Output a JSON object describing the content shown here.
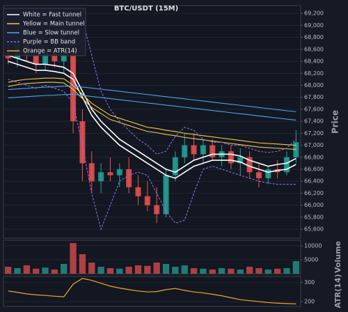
{
  "chart_data": {
    "type": "candlestick",
    "title": "BTC/USDT (15M)",
    "ylabel": "Price",
    "up_color": "#26a69a",
    "down_color": "#ef5350",
    "grid": true,
    "ylim": [
      65450,
      69330
    ],
    "yticks": [
      {
        "value": 65600,
        "label": "65,600"
      },
      {
        "value": 65800,
        "label": "65,800"
      },
      {
        "value": 66000,
        "label": "66,000"
      },
      {
        "value": 66200,
        "label": "66,200"
      },
      {
        "value": 66400,
        "label": "66,400"
      },
      {
        "value": 66600,
        "label": "66,600"
      },
      {
        "value": 66800,
        "label": "66,800"
      },
      {
        "value": 67000,
        "label": "67,000"
      },
      {
        "value": 67200,
        "label": "67,200"
      },
      {
        "value": 67400,
        "label": "67,400"
      },
      {
        "value": 67600,
        "label": "67,600"
      },
      {
        "value": 67800,
        "label": "67,800"
      },
      {
        "value": 68000,
        "label": "68,000"
      },
      {
        "value": 68200,
        "label": "68,200"
      },
      {
        "value": 68400,
        "label": "68,400"
      },
      {
        "value": 68600,
        "label": "68,600"
      },
      {
        "value": 68800,
        "label": "68,800"
      },
      {
        "value": 69000,
        "label": "69,000"
      },
      {
        "value": 69200,
        "label": "69,200"
      }
    ],
    "open": [
      68500,
      68450,
      68700,
      68500,
      68350,
      68550,
      68400,
      68600,
      67400,
      66700,
      66400,
      66550,
      66500,
      66600,
      66300,
      66150,
      66000,
      65850,
      66500,
      66800,
      67000,
      66850,
      67000,
      66800,
      66900,
      66700,
      66800,
      66550,
      66450,
      66600,
      66550,
      66800
    ],
    "high": [
      68700,
      68900,
      68800,
      68700,
      68600,
      68700,
      68900,
      68900,
      67600,
      66900,
      66700,
      66800,
      66700,
      66800,
      66500,
      66400,
      66300,
      66600,
      66900,
      67200,
      67200,
      67100,
      67100,
      67000,
      67000,
      66950,
      66900,
      66700,
      66650,
      66750,
      66900,
      67250
    ],
    "low": [
      68350,
      68300,
      68400,
      68200,
      68250,
      68300,
      68200,
      67200,
      66400,
      66200,
      66200,
      66400,
      66300,
      66200,
      66000,
      65900,
      65700,
      65800,
      66400,
      66700,
      66750,
      66700,
      66750,
      66650,
      66600,
      66500,
      66450,
      66300,
      66350,
      66450,
      66500,
      66700
    ],
    "close": [
      68450,
      68700,
      68500,
      68350,
      68550,
      68400,
      68600,
      67400,
      66700,
      66400,
      66550,
      66500,
      66600,
      66300,
      66150,
      66000,
      65850,
      66500,
      66800,
      67000,
      66850,
      67000,
      66800,
      66900,
      66700,
      66800,
      66550,
      66450,
      66600,
      66550,
      66800,
      67050
    ],
    "series": [
      {
        "name": "White = Fast tunnel",
        "color": "#ffffff",
        "dashed": false,
        "upper": [
          68500,
          68450,
          68400,
          68350,
          68350,
          68330,
          68300,
          68200,
          67900,
          67600,
          67400,
          67250,
          67100,
          67000,
          66900,
          66800,
          66700,
          66600,
          66550,
          66650,
          66750,
          66800,
          66850,
          66850,
          66850,
          66820,
          66750,
          66700,
          66650,
          66680,
          66700,
          66780
        ],
        "lower": [
          68400,
          68350,
          68300,
          68250,
          68250,
          68230,
          68200,
          68100,
          67800,
          67500,
          67300,
          67150,
          67000,
          66900,
          66800,
          66700,
          66600,
          66500,
          66450,
          66550,
          66650,
          66700,
          66750,
          66750,
          66750,
          66720,
          66650,
          66600,
          66550,
          66580,
          66600,
          66680
        ]
      },
      {
        "name": "Yellow = Main tunnel",
        "color": "#f5c842",
        "dashed": false,
        "upper": [
          68050,
          68080,
          68100,
          68110,
          68120,
          68120,
          68110,
          68000,
          67850,
          67700,
          67600,
          67500,
          67450,
          67400,
          67350,
          67300,
          67280,
          67250,
          67230,
          67200,
          67180,
          67160,
          67140,
          67120,
          67100,
          67080,
          67060,
          67040,
          67030,
          67020,
          67010,
          67000
        ],
        "lower": [
          67980,
          68010,
          68030,
          68040,
          68050,
          68050,
          68040,
          67930,
          67780,
          67630,
          67530,
          67430,
          67380,
          67330,
          67280,
          67230,
          67210,
          67180,
          67160,
          67130,
          67110,
          67090,
          67070,
          67050,
          67030,
          67010,
          66990,
          66970,
          66960,
          66950,
          66940,
          66930
        ]
      },
      {
        "name": "Blue = Slow tunnel",
        "color": "#4aa3f0",
        "dashed": false,
        "upper": [
          67930,
          67940,
          67950,
          67960,
          67970,
          67975,
          67985,
          67990,
          67972,
          67954,
          67936,
          67918,
          67900,
          67882,
          67864,
          67846,
          67828,
          67810,
          67792,
          67774,
          67756,
          67738,
          67720,
          67702,
          67684,
          67666,
          67648,
          67630,
          67612,
          67594,
          67576,
          67560
        ],
        "lower": [
          67790,
          67800,
          67810,
          67820,
          67830,
          67835,
          67845,
          67850,
          67832,
          67814,
          67796,
          67778,
          67760,
          67742,
          67724,
          67706,
          67688,
          67670,
          67652,
          67634,
          67616,
          67598,
          67580,
          67562,
          67544,
          67526,
          67508,
          67490,
          67472,
          67454,
          67436,
          67420
        ]
      },
      {
        "name": "Purple = BB band",
        "color": "#8a6fe0",
        "dashed": true,
        "upper": [
          68800,
          68850,
          68850,
          68800,
          68750,
          68800,
          68950,
          69200,
          69100,
          68500,
          67900,
          67600,
          67400,
          67250,
          67100,
          67000,
          66850,
          66900,
          67150,
          67300,
          67250,
          67100,
          67050,
          67050,
          67000,
          67000,
          66950,
          66900,
          66880,
          66900,
          66950,
          67100
        ],
        "lower": [
          68100,
          68050,
          68000,
          67950,
          68000,
          67950,
          67900,
          67700,
          67000,
          66200,
          65600,
          66000,
          66400,
          66500,
          66550,
          66500,
          66200,
          65900,
          65700,
          65750,
          66200,
          66600,
          66650,
          66600,
          66550,
          66500,
          66450,
          66400,
          66370,
          66350,
          66350,
          66350
        ]
      }
    ],
    "volume": {
      "ylabel": "Volume",
      "ylim": [
        0,
        12000
      ],
      "yticks": [
        5000,
        10000
      ],
      "values": [
        2500,
        2000,
        3000,
        1800,
        2200,
        1500,
        3500,
        11000,
        7000,
        4000,
        2500,
        2000,
        1800,
        2500,
        3000,
        2800,
        4000,
        3500,
        2500,
        3000,
        2000,
        1800,
        1500,
        2000,
        1800,
        1500,
        2500,
        2000,
        1500,
        1800,
        2000,
        4500
      ]
    },
    "atr": {
      "name": "Orange = ATR(14)",
      "ylabel": "ATR(14)",
      "color": "#f5a623",
      "ylim": [
        175,
        330
      ],
      "yticks": [
        200,
        300
      ],
      "values": [
        255,
        248,
        240,
        235,
        232,
        228,
        225,
        290,
        320,
        310,
        295,
        280,
        270,
        262,
        255,
        250,
        252,
        262,
        268,
        258,
        250,
        245,
        238,
        230,
        220,
        210,
        205,
        200,
        195,
        192,
        190,
        188
      ]
    }
  }
}
